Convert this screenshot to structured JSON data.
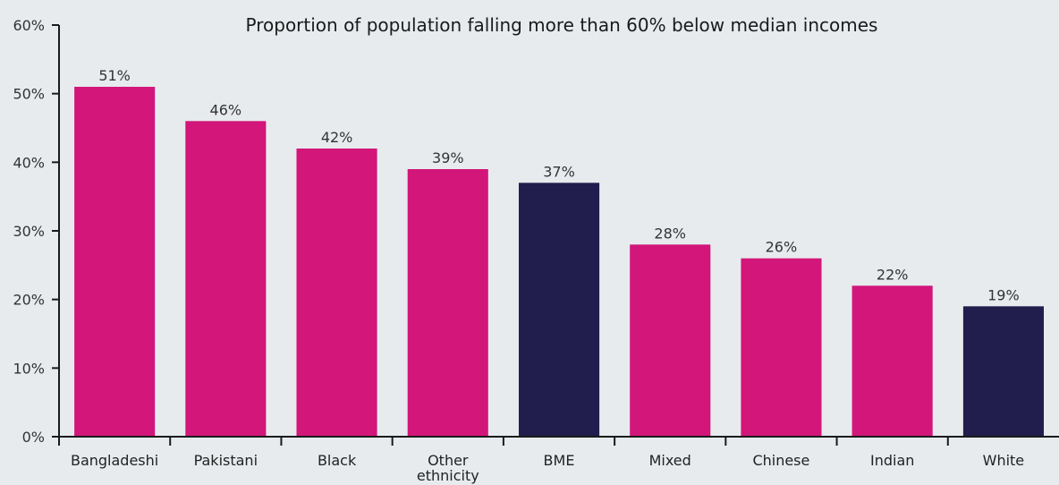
{
  "chart_data": {
    "type": "bar",
    "title": "Proportion of population falling more than 60% below median incomes",
    "xlabel": "",
    "ylabel": "",
    "ylim": [
      0,
      60
    ],
    "yticks": [
      "0%",
      "10%",
      "20%",
      "30%",
      "40%",
      "50%",
      "60%"
    ],
    "categories": [
      "Bangladeshi",
      "Pakistani",
      "Black",
      "Other ethnicity",
      "BME",
      "Mixed",
      "Chinese",
      "Indian",
      "White"
    ],
    "category_lines": [
      [
        "Bangladeshi"
      ],
      [
        "Pakistani"
      ],
      [
        "Black"
      ],
      [
        "Other",
        "ethnicity"
      ],
      [
        "BME"
      ],
      [
        "Mixed"
      ],
      [
        "Chinese"
      ],
      [
        "Indian"
      ],
      [
        "White"
      ]
    ],
    "values": [
      51,
      46,
      42,
      39,
      37,
      28,
      26,
      22,
      19
    ],
    "data_labels": [
      "51%",
      "46%",
      "42%",
      "39%",
      "37%",
      "28%",
      "26%",
      "22%",
      "19%"
    ],
    "highlight": [
      false,
      false,
      false,
      false,
      true,
      false,
      false,
      false,
      true
    ],
    "grid": false,
    "colors": {
      "primary": "#d2167a",
      "highlight": "#211e4e",
      "background": "#e7ebee"
    }
  }
}
